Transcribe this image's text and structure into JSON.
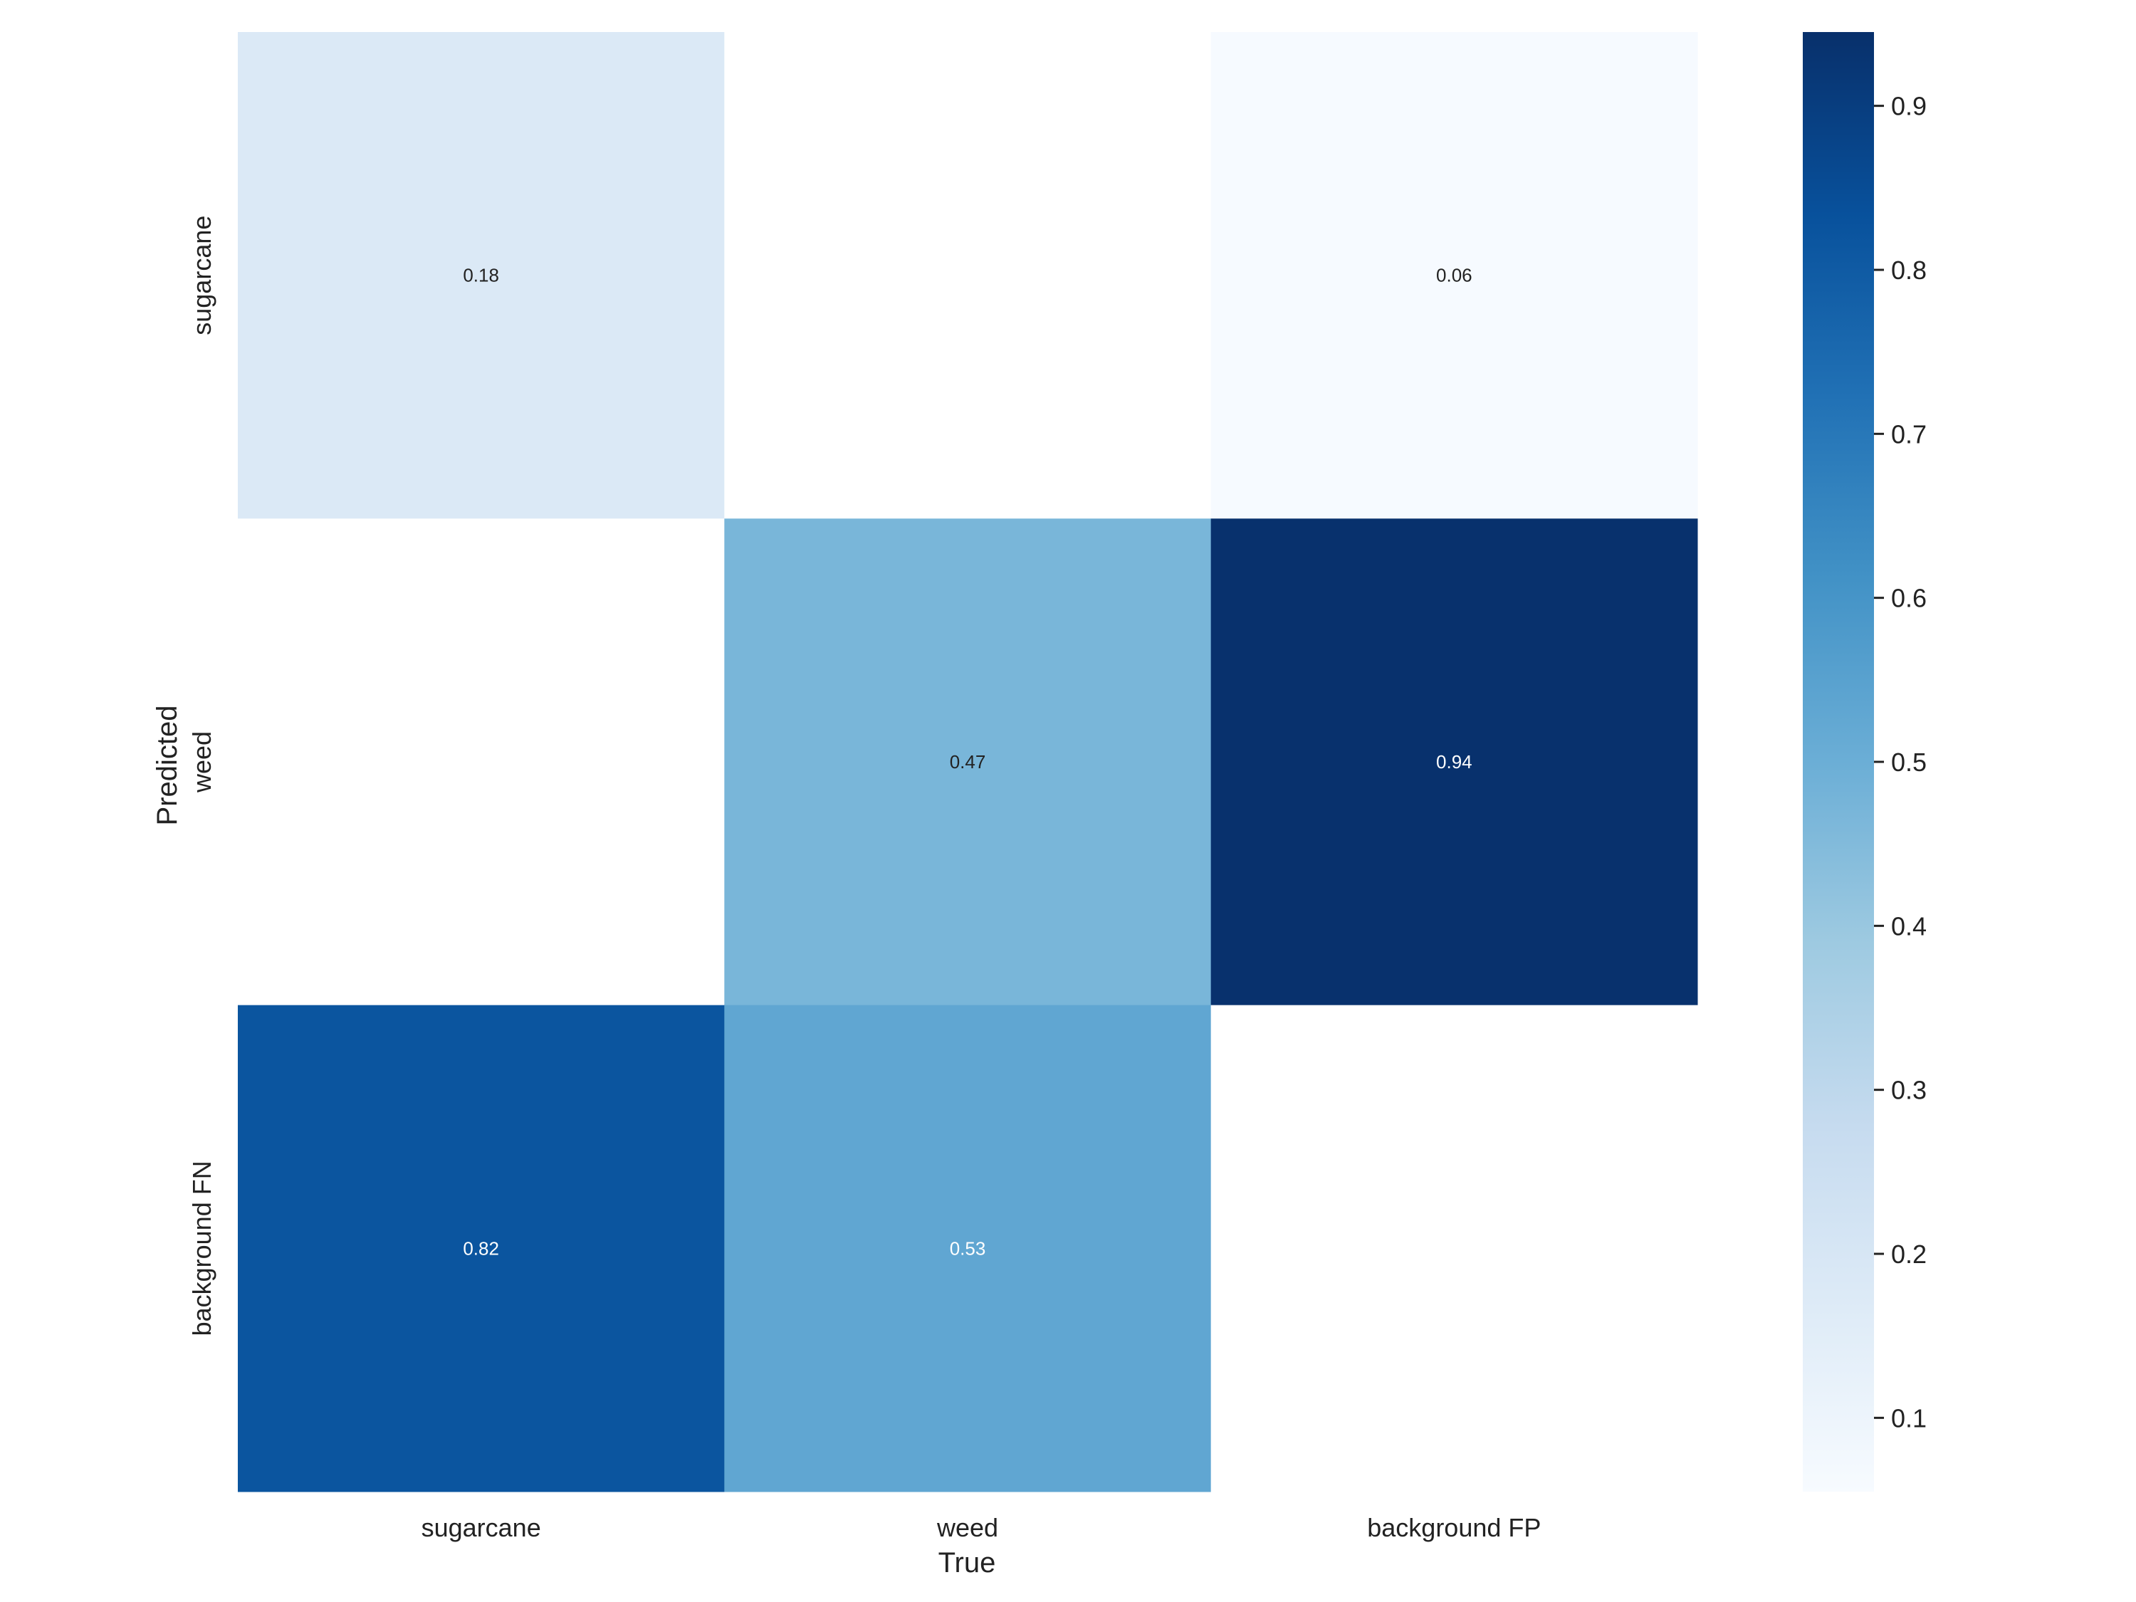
{
  "chart_data": {
    "type": "heatmap",
    "title": "",
    "xlabel": "True",
    "ylabel": "Predicted",
    "x_categories": [
      "sugarcane",
      "weed",
      "background FP"
    ],
    "y_categories": [
      "sugarcane",
      "weed",
      "background FN"
    ],
    "values": [
      [
        0.18,
        null,
        0.06
      ],
      [
        null,
        0.47,
        0.94
      ],
      [
        0.82,
        0.53,
        null
      ]
    ],
    "cell_labels": [
      [
        "0.18",
        "",
        "0.06"
      ],
      [
        "",
        "0.47",
        "0.94"
      ],
      [
        "0.82",
        "0.53",
        ""
      ]
    ],
    "colorbar": {
      "range": [
        0.055,
        0.945
      ],
      "ticks": [
        0.1,
        0.2,
        0.3,
        0.4,
        0.5,
        0.6,
        0.7,
        0.8,
        0.9
      ],
      "tick_labels": [
        "0.1",
        "0.2",
        "0.3",
        "0.4",
        "0.5",
        "0.6",
        "0.7",
        "0.8",
        "0.9"
      ],
      "colormap": "Blues"
    },
    "grid": false,
    "legend": "colorbar-right"
  }
}
